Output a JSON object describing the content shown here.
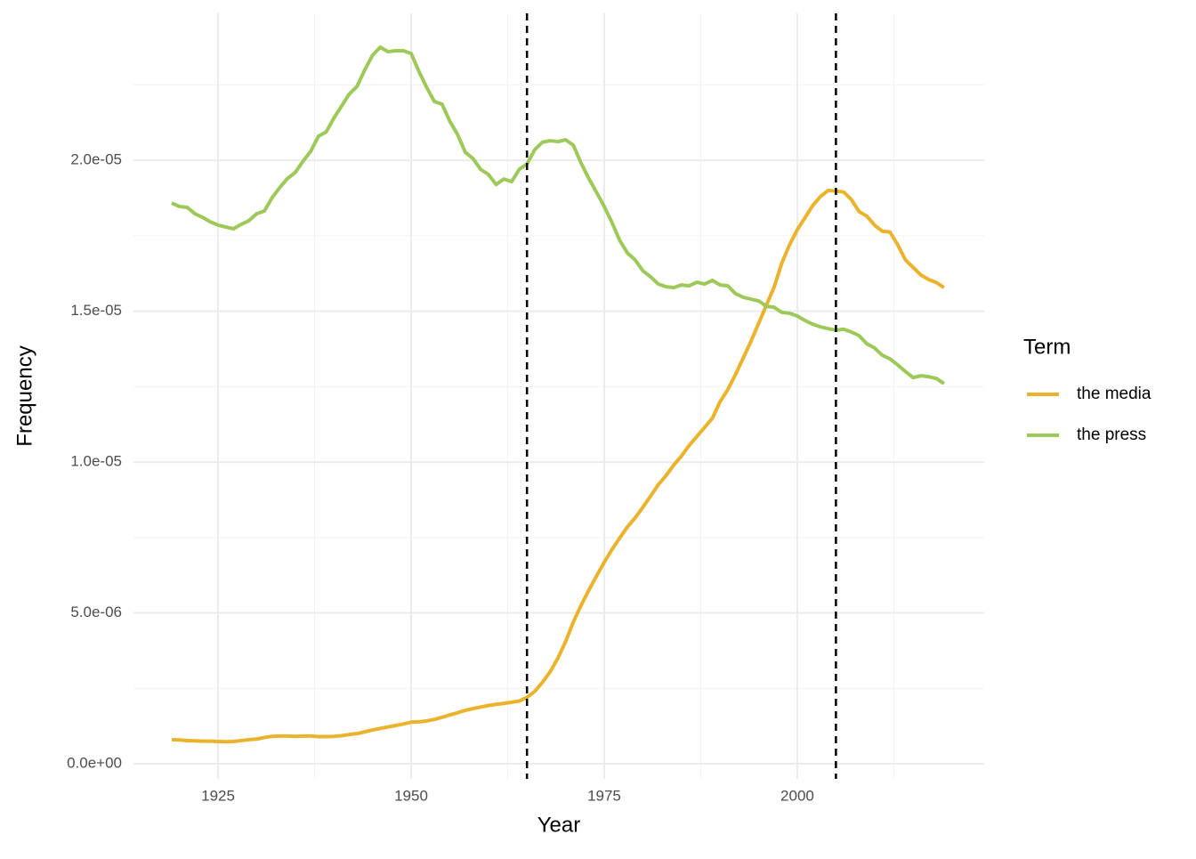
{
  "chart_data": {
    "type": "line",
    "x_label": "Year",
    "y_label": "Frequency",
    "legend_title": "Term",
    "legend_position": "right",
    "grid": true,
    "xlim": [
      1914.05,
      2024.2
    ],
    "ylim": [
      -5e-07,
      2.487e-05
    ],
    "xticks": [
      1925,
      1950,
      1975,
      2000
    ],
    "yticks": [
      {
        "value": 0,
        "label": "0.0e+00"
      },
      {
        "value": 5e-06,
        "label": "5.0e-06"
      },
      {
        "value": 1e-05,
        "label": "1.0e-05"
      },
      {
        "value": 1.5e-05,
        "label": "1.5e-05"
      },
      {
        "value": 2e-05,
        "label": "2.0e-05"
      }
    ],
    "vlines": [
      1965,
      2005
    ],
    "x": [
      1919,
      1920,
      1921,
      1922,
      1923,
      1924,
      1925,
      1926,
      1927,
      1928,
      1929,
      1930,
      1931,
      1932,
      1933,
      1934,
      1935,
      1936,
      1937,
      1938,
      1939,
      1940,
      1941,
      1942,
      1943,
      1944,
      1945,
      1946,
      1947,
      1948,
      1949,
      1950,
      1951,
      1952,
      1953,
      1954,
      1955,
      1956,
      1957,
      1958,
      1959,
      1960,
      1961,
      1962,
      1963,
      1964,
      1965,
      1966,
      1967,
      1968,
      1969,
      1970,
      1971,
      1972,
      1973,
      1974,
      1975,
      1976,
      1977,
      1978,
      1979,
      1980,
      1981,
      1982,
      1983,
      1984,
      1985,
      1986,
      1987,
      1988,
      1989,
      1990,
      1991,
      1992,
      1993,
      1994,
      1995,
      1996,
      1997,
      1998,
      1999,
      2000,
      2001,
      2002,
      2003,
      2004,
      2005,
      2006,
      2007,
      2008,
      2009,
      2010,
      2011,
      2012,
      2013,
      2014,
      2015,
      2016,
      2017,
      2018,
      2019
    ],
    "series": [
      {
        "name": "the media",
        "color": "#ebb22b",
        "values": [
          8e-07,
          7.9e-07,
          7.7e-07,
          7.6e-07,
          7.5e-07,
          7.5e-07,
          7.4e-07,
          7.3e-07,
          7.4e-07,
          7.7e-07,
          8e-07,
          8.2e-07,
          8.7e-07,
          9.1e-07,
          9.2e-07,
          9.2e-07,
          9.1e-07,
          9.2e-07,
          9.2e-07,
          9e-07,
          9e-07,
          9.1e-07,
          9.3e-07,
          9.7e-07,
          1e-06,
          1.06e-06,
          1.12e-06,
          1.17e-06,
          1.22e-06,
          1.27e-06,
          1.32e-06,
          1.38e-06,
          1.39e-06,
          1.42e-06,
          1.47e-06,
          1.54e-06,
          1.62e-06,
          1.69e-06,
          1.77e-06,
          1.83e-06,
          1.88e-06,
          1.93e-06,
          1.97e-06,
          2e-06,
          2.04e-06,
          2.08e-06,
          2.2e-06,
          2.4e-06,
          2.7e-06,
          3.05e-06,
          3.5e-06,
          4.05e-06,
          4.7e-06,
          5.25e-06,
          5.75e-06,
          6.22e-06,
          6.68e-06,
          7.1e-06,
          7.48e-06,
          7.85e-06,
          8.15e-06,
          8.5e-06,
          8.87e-06,
          9.25e-06,
          9.55e-06,
          9.9e-06,
          1.02e-05,
          1.055e-05,
          1.085e-05,
          1.115e-05,
          1.145e-05,
          1.2e-05,
          1.24e-05,
          1.29e-05,
          1.345e-05,
          1.4e-05,
          1.46e-05,
          1.52e-05,
          1.58e-05,
          1.66e-05,
          1.72e-05,
          1.77e-05,
          1.81e-05,
          1.85e-05,
          1.88e-05,
          1.9e-05,
          1.898e-05,
          1.895e-05,
          1.87e-05,
          1.83e-05,
          1.815e-05,
          1.785e-05,
          1.765e-05,
          1.762e-05,
          1.72e-05,
          1.67e-05,
          1.645e-05,
          1.62e-05,
          1.605e-05,
          1.595e-05,
          1.578e-05
        ]
      },
      {
        "name": "the press",
        "color": "#9cc957",
        "values": [
          1.858e-05,
          1.847e-05,
          1.844e-05,
          1.823e-05,
          1.811e-05,
          1.796e-05,
          1.785e-05,
          1.779e-05,
          1.773e-05,
          1.788e-05,
          1.8e-05,
          1.823e-05,
          1.832e-05,
          1.876e-05,
          1.91e-05,
          1.94e-05,
          1.96e-05,
          1.997e-05,
          2.03e-05,
          2.08e-05,
          2.094e-05,
          2.14e-05,
          2.18e-05,
          2.22e-05,
          2.245e-05,
          2.3e-05,
          2.348e-05,
          2.375e-05,
          2.36e-05,
          2.363e-05,
          2.363e-05,
          2.354e-05,
          2.295e-05,
          2.242e-05,
          2.195e-05,
          2.186e-05,
          2.13e-05,
          2.086e-05,
          2.027e-05,
          2.006e-05,
          1.97e-05,
          1.953e-05,
          1.92e-05,
          1.938e-05,
          1.929e-05,
          1.97e-05,
          1.988e-05,
          2.035e-05,
          2.06e-05,
          2.065e-05,
          2.062e-05,
          2.068e-05,
          2.05e-05,
          1.991e-05,
          1.94e-05,
          1.894e-05,
          1.847e-05,
          1.794e-05,
          1.735e-05,
          1.693e-05,
          1.67e-05,
          1.634e-05,
          1.614e-05,
          1.59e-05,
          1.581e-05,
          1.578e-05,
          1.587e-05,
          1.584e-05,
          1.596e-05,
          1.59e-05,
          1.602e-05,
          1.587e-05,
          1.584e-05,
          1.558e-05,
          1.546e-05,
          1.54e-05,
          1.534e-05,
          1.516e-05,
          1.513e-05,
          1.496e-05,
          1.493e-05,
          1.484e-05,
          1.469e-05,
          1.457e-05,
          1.448e-05,
          1.442e-05,
          1.437e-05,
          1.44e-05,
          1.431e-05,
          1.419e-05,
          1.392e-05,
          1.378e-05,
          1.354e-05,
          1.342e-05,
          1.322e-05,
          1.3e-05,
          1.28e-05,
          1.286e-05,
          1.283e-05,
          1.277e-05,
          1.26e-05
        ]
      }
    ]
  }
}
